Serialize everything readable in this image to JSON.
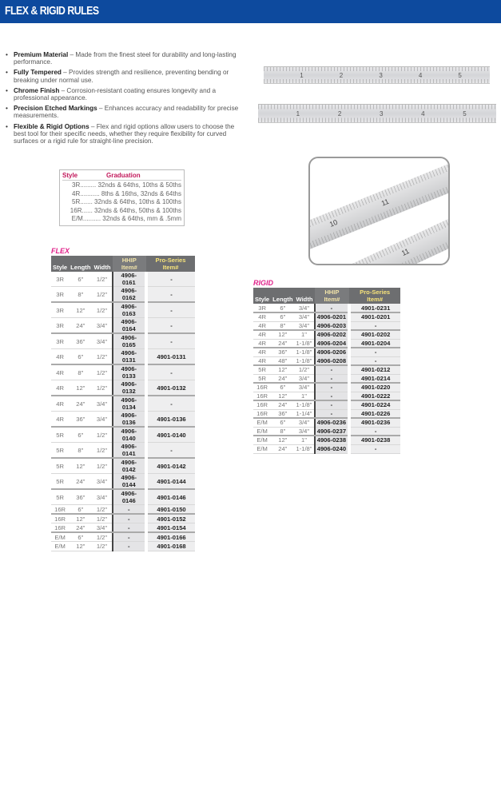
{
  "header": {
    "title": "FLEX & RIGID RULES",
    "color": "#0d4a9e"
  },
  "features": [
    {
      "title": "Premium Material",
      "text": " – Made from the finest steel for durability and long-lasting performance."
    },
    {
      "title": "Fully Tempered",
      "text": " – Provides strength and resilience, preventing bending or breaking under normal use."
    },
    {
      "title": "Chrome Finish",
      "text": " – Corrosion-resistant coating ensures longevity and a professional appearance."
    },
    {
      "title": "Precision Etched Markings",
      "text": " – Enhances accuracy and readability for precise measurements."
    },
    {
      "title": "Flexible & Rigid Options",
      "text": " – Flex and rigid options allow users to choose the best tool for their specific needs, whether they require flexibility for curved surfaces or a rigid rule for straight-line precision."
    }
  ],
  "graduation": {
    "headers": [
      "Style",
      "Graduation"
    ],
    "rows": [
      "3R......... 32nds & 64ths, 10ths & 50ths",
      "4R........... 8ths & 16ths, 32nds & 64ths",
      "5R....... 32nds & 64ths, 10ths & 100ths",
      "16R...... 32nds & 64ths, 50ths & 100ths",
      "E/M.......... 32nds & 64ths, mm & .5mm"
    ]
  },
  "flex": {
    "label": "FLEX",
    "headers": [
      "Style",
      "Length",
      "Width",
      "HHIP Item#",
      "Pro-Series Item#"
    ],
    "rows": [
      [
        "3R",
        "6\"",
        "1/2\"",
        "4906-0161",
        "-"
      ],
      [
        "3R",
        "8\"",
        "1/2\"",
        "4906-0162",
        "-"
      ],
      [
        "3R",
        "12\"",
        "1/2\"",
        "4906-0163",
        "-"
      ],
      [
        "3R",
        "24\"",
        "3/4\"",
        "4906-0164",
        "-"
      ],
      [
        "3R",
        "36\"",
        "3/4\"",
        "4906-0165",
        "-"
      ],
      [
        "4R",
        "6\"",
        "1/2\"",
        "4906-0131",
        "4901-0131"
      ],
      [
        "4R",
        "8\"",
        "1/2\"",
        "4906-0133",
        "-"
      ],
      [
        "4R",
        "12\"",
        "1/2\"",
        "4906-0132",
        "4901-0132"
      ],
      [
        "4R",
        "24\"",
        "3/4\"",
        "4906-0134",
        "-"
      ],
      [
        "4R",
        "36\"",
        "3/4\"",
        "4906-0136",
        "4901-0136"
      ],
      [
        "5R",
        "6\"",
        "1/2\"",
        "4906-0140",
        "4901-0140"
      ],
      [
        "5R",
        "8\"",
        "1/2\"",
        "4906-0141",
        "-"
      ],
      [
        "5R",
        "12\"",
        "1/2\"",
        "4906-0142",
        "4901-0142"
      ],
      [
        "5R",
        "24\"",
        "3/4\"",
        "4906-0144",
        "4901-0144"
      ],
      [
        "5R",
        "36\"",
        "3/4\"",
        "4906-0146",
        "4901-0146"
      ],
      [
        "16R",
        "6\"",
        "1/2\"",
        "-",
        "4901-0150"
      ],
      [
        "16R",
        "12\"",
        "1/2\"",
        "-",
        "4901-0152"
      ],
      [
        "16R",
        "24\"",
        "3/4\"",
        "-",
        "4901-0154"
      ],
      [
        "E/M",
        "6\"",
        "1/2\"",
        "-",
        "4901-0166"
      ],
      [
        "E/M",
        "12\"",
        "1/2\"",
        "-",
        "4901-0168"
      ]
    ]
  },
  "rigid": {
    "label": "RIGID",
    "headers": [
      "Style",
      "Length",
      "Width",
      "HHIP Item#",
      "Pro-Series Item#"
    ],
    "rows": [
      [
        "3R",
        "6\"",
        "3/4\"",
        "-",
        "4901-0231"
      ],
      [
        "4R",
        "6\"",
        "3/4\"",
        "4906-0201",
        "4901-0201"
      ],
      [
        "4R",
        "8\"",
        "3/4\"",
        "4906-0203",
        "-"
      ],
      [
        "4R",
        "12\"",
        "1\"",
        "4906-0202",
        "4901-0202"
      ],
      [
        "4R",
        "24\"",
        "1-1/8\"",
        "4906-0204",
        "4901-0204"
      ],
      [
        "4R",
        "36\"",
        "1-1/8\"",
        "4906-0206",
        "-"
      ],
      [
        "4R",
        "48\"",
        "1-1/8\"",
        "4906-0208",
        "-"
      ],
      [
        "5R",
        "12\"",
        "1/2\"",
        "-",
        "4901-0212"
      ],
      [
        "5R",
        "24\"",
        "3/4\"",
        "-",
        "4901-0214"
      ],
      [
        "16R",
        "6\"",
        "3/4\"",
        "-",
        "4901-0220"
      ],
      [
        "16R",
        "12\"",
        "1\"",
        "-",
        "4901-0222"
      ],
      [
        "16R",
        "24\"",
        "1-1/8\"",
        "-",
        "4901-0224"
      ],
      [
        "16R",
        "36\"",
        "1-1/4\"",
        "-",
        "4901-0226"
      ],
      [
        "E/M",
        "6\"",
        "3/4\"",
        "4906-0236",
        "4901-0236"
      ],
      [
        "E/M",
        "8\"",
        "3/4\"",
        "4906-0237",
        "-"
      ],
      [
        "E/M",
        "12\"",
        "1\"",
        "4906-0238",
        "4901-0238"
      ],
      [
        "E/M",
        "24\"",
        "1-1/8\"",
        "4906-0240",
        "-"
      ]
    ]
  },
  "rulers": {
    "top_numbers": [
      "1",
      "2",
      "3",
      "4",
      "5"
    ],
    "bottom_numbers": [
      "1",
      "2",
      "3",
      "4",
      "5"
    ],
    "photo_numbers": [
      "10",
      "11",
      "11"
    ]
  }
}
